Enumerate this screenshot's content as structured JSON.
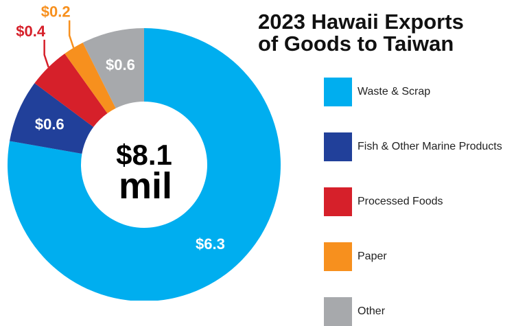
{
  "chart_data": {
    "type": "pie",
    "title_lines": [
      "2023 Hawaii Exports",
      "of Goods to Taiwan"
    ],
    "center_label_lines": [
      "$8.1",
      "mil"
    ],
    "slices": [
      {
        "label": "Waste & Scrap",
        "value": 6.3,
        "value_label": "$6.3",
        "color": "#00AEEF"
      },
      {
        "label": "Fish & Other Marine Products",
        "value": 0.6,
        "value_label": "$0.6",
        "color": "#21409A"
      },
      {
        "label": "Processed Foods",
        "value": 0.4,
        "value_label": "$0.4",
        "color": "#D6202A"
      },
      {
        "label": "Paper",
        "value": 0.2,
        "value_label": "$0.2",
        "color": "#F7901E"
      },
      {
        "label": "Other",
        "value": 0.6,
        "value_label": "$0.6",
        "color": "#A7A9AC"
      }
    ],
    "legend_position": "right"
  }
}
